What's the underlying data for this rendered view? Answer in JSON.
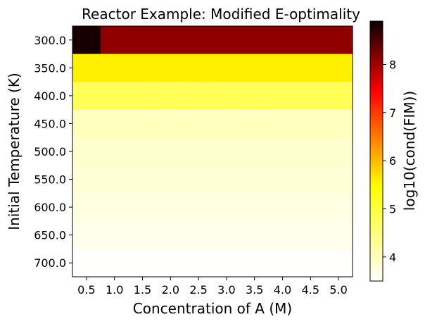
{
  "chart_data": {
    "type": "heatmap",
    "title": "Reactor Example: Modified E-optimality",
    "xlabel": "Concentration of A (M)",
    "ylabel": "Initial Temperature (K)",
    "colorbar_label": "log10(cond(FIM))",
    "x_categories": [
      "0.5",
      "1.0",
      "1.5",
      "2.0",
      "2.5",
      "3.0",
      "3.5",
      "4.0",
      "4.5",
      "5.0"
    ],
    "y_categories": [
      "300.0",
      "350.0",
      "400.0",
      "450.0",
      "500.0",
      "550.0",
      "600.0",
      "650.0",
      "700.0"
    ],
    "values": [
      [
        8.9,
        7.85,
        7.85,
        7.85,
        7.85,
        7.85,
        7.85,
        7.85,
        7.85,
        7.85
      ],
      [
        5.0,
        5.0,
        5.0,
        5.0,
        5.0,
        5.0,
        5.0,
        5.0,
        5.0,
        5.0
      ],
      [
        4.4,
        4.4,
        4.4,
        4.4,
        4.4,
        4.4,
        4.4,
        4.4,
        4.4,
        4.4
      ],
      [
        3.85,
        3.85,
        3.85,
        3.85,
        3.85,
        3.85,
        3.85,
        3.85,
        3.85,
        3.85
      ],
      [
        3.77,
        3.77,
        3.77,
        3.77,
        3.77,
        3.77,
        3.77,
        3.77,
        3.77,
        3.77
      ],
      [
        3.72,
        3.72,
        3.72,
        3.72,
        3.72,
        3.72,
        3.72,
        3.72,
        3.72,
        3.72
      ],
      [
        3.66,
        3.66,
        3.66,
        3.66,
        3.66,
        3.66,
        3.66,
        3.66,
        3.66,
        3.66
      ],
      [
        3.6,
        3.6,
        3.6,
        3.6,
        3.6,
        3.6,
        3.6,
        3.6,
        3.6,
        3.6
      ],
      [
        3.52,
        3.52,
        3.52,
        3.52,
        3.52,
        3.52,
        3.52,
        3.52,
        3.52,
        3.52
      ]
    ],
    "colormap": "hot_r",
    "color_range": [
      3.5,
      8.9
    ],
    "colorbar_ticks": [
      "4",
      "5",
      "6",
      "7",
      "8"
    ]
  }
}
